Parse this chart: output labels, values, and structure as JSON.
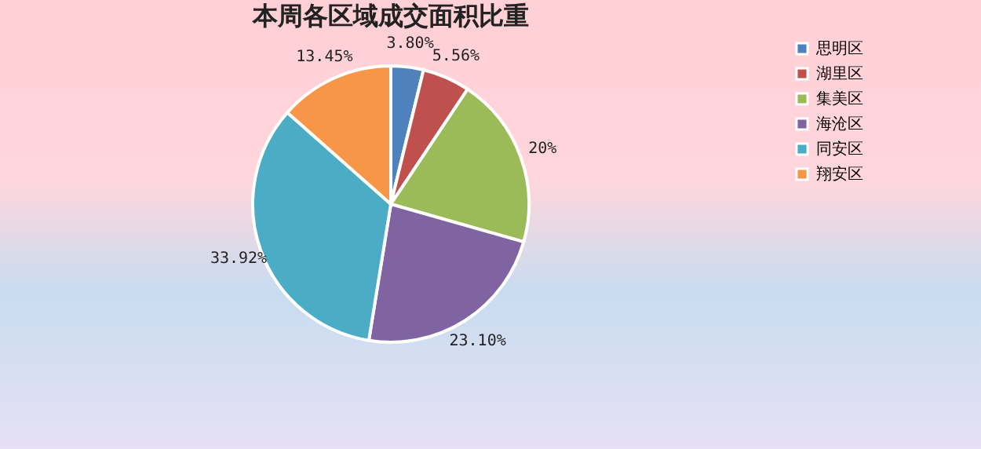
{
  "chart_data": {
    "type": "pie",
    "title": "本周各区域成交面积比重",
    "categories": [
      "思明区",
      "湖里区",
      "集美区",
      "海沧区",
      "同安区",
      "翔安区"
    ],
    "values": [
      3.8,
      5.56,
      20,
      23.1,
      33.92,
      13.45
    ],
    "value_labels": [
      "3.80%",
      "5.56%",
      "20%",
      "23.10%",
      "33.92%",
      "13.45%"
    ],
    "colors": [
      "#4f81bd",
      "#c0504d",
      "#9bbb59",
      "#8064a2",
      "#4bacc6",
      "#f79646"
    ],
    "legend": "right"
  }
}
